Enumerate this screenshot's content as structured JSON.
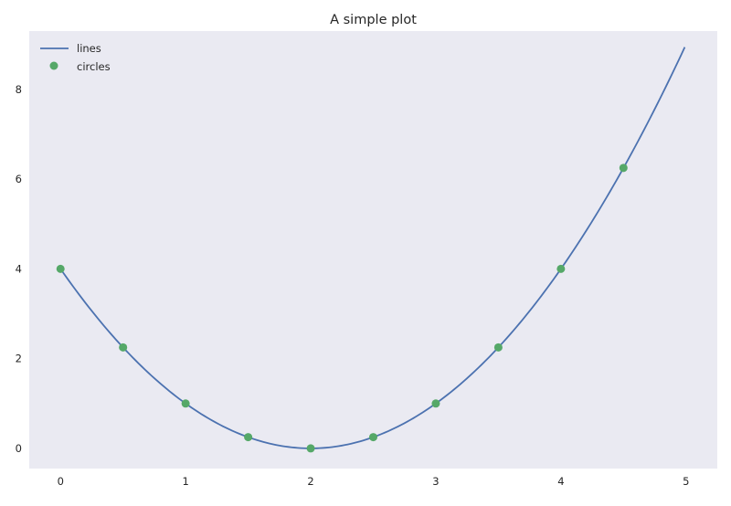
{
  "chart_data": {
    "type": "line",
    "title": "A simple plot",
    "xlabel": "",
    "ylabel": "",
    "xlim": [
      -0.25,
      5.25
    ],
    "ylim": [
      -0.45,
      9.3
    ],
    "x_ticks": [
      0,
      1,
      2,
      3,
      4,
      5
    ],
    "y_ticks": [
      0,
      2,
      4,
      6,
      8
    ],
    "grid": false,
    "legend_position": "top-left",
    "background_color": "#eaeaf2",
    "series": [
      {
        "name": "lines",
        "kind": "line",
        "color": "#4c72b0",
        "function": "(x - 2)^2",
        "x_range": [
          0,
          4.99
        ]
      },
      {
        "name": "circles",
        "kind": "scatter",
        "color": "#55a868",
        "points": [
          {
            "x": 0,
            "y": 4
          },
          {
            "x": 0.5,
            "y": 2.25
          },
          {
            "x": 1,
            "y": 1
          },
          {
            "x": 1.5,
            "y": 0.25
          },
          {
            "x": 2,
            "y": 0
          },
          {
            "x": 2.5,
            "y": 0.25
          },
          {
            "x": 3,
            "y": 1
          },
          {
            "x": 3.5,
            "y": 2.25
          },
          {
            "x": 4,
            "y": 4
          },
          {
            "x": 4.5,
            "y": 6.25
          }
        ]
      }
    ]
  }
}
